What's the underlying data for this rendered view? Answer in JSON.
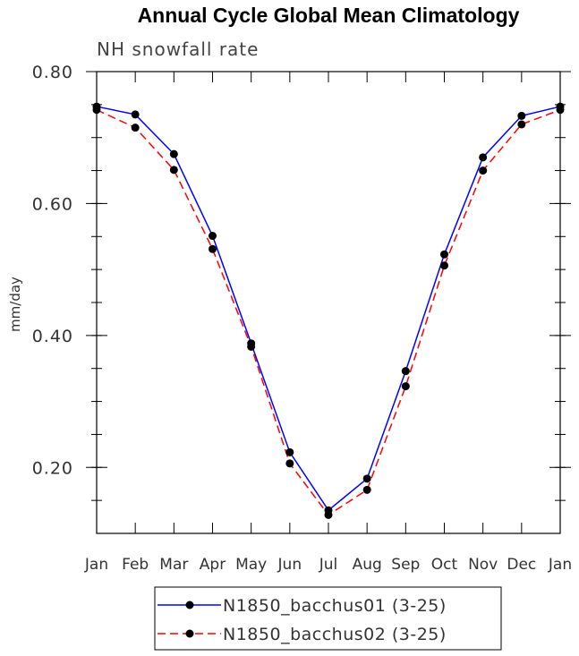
{
  "chart_data": {
    "type": "line",
    "title": "Annual Cycle Global Mean Climatology",
    "subtitle": "NH snowfall rate",
    "xlabel": "",
    "ylabel": "mm/day",
    "categories": [
      "Jan",
      "Feb",
      "Mar",
      "Apr",
      "May",
      "Jun",
      "Jul",
      "Aug",
      "Sep",
      "Oct",
      "Nov",
      "Dec",
      "Jan"
    ],
    "ylim": [
      0.1,
      0.8
    ],
    "yticks": [
      {
        "value": 0.2,
        "label": "0.20"
      },
      {
        "value": 0.4,
        "label": "0.40"
      },
      {
        "value": 0.6,
        "label": "0.60"
      },
      {
        "value": 0.8,
        "label": "0.80"
      }
    ],
    "series": [
      {
        "name": "N1850_bacchus01 (3-25)",
        "color": "#0000ff",
        "dash": "solid",
        "values": [
          0.747,
          0.735,
          0.675,
          0.551,
          0.388,
          0.223,
          0.135,
          0.183,
          0.346,
          0.523,
          0.67,
          0.733,
          0.747
        ]
      },
      {
        "name": "N1850_bacchus02 (3-25)",
        "color": "#ff0000",
        "dash": "dashed",
        "values": [
          0.742,
          0.715,
          0.651,
          0.531,
          0.383,
          0.206,
          0.128,
          0.166,
          0.323,
          0.506,
          0.65,
          0.72,
          0.742
        ]
      }
    ],
    "legend_position": "bottom-center"
  }
}
